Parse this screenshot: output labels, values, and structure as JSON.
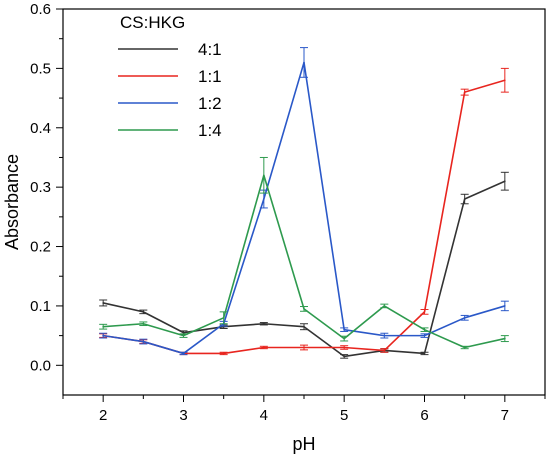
{
  "chart_data": {
    "type": "line",
    "xlabel": "pH",
    "ylabel": "Absorbance",
    "xlim": [
      1.5,
      7.5
    ],
    "ylim": [
      -0.05,
      0.6
    ],
    "xticks": [
      2,
      3,
      4,
      5,
      6,
      7
    ],
    "yticks": [
      0.0,
      0.1,
      0.2,
      0.3,
      0.4,
      0.5,
      0.6
    ],
    "xtick_labels": [
      "2",
      "3",
      "4",
      "5",
      "6",
      "7"
    ],
    "ytick_labels": [
      "0.0",
      "0.1",
      "0.2",
      "0.3",
      "0.4",
      "0.5",
      "0.6"
    ],
    "grid": false,
    "legend_position": "top-left",
    "legend_title": "CS:HKG",
    "x": [
      2,
      2.5,
      3,
      3.5,
      4,
      4.5,
      5,
      5.5,
      6,
      6.5,
      7
    ],
    "series": [
      {
        "name": "4:1",
        "color": "#333333",
        "values": [
          0.105,
          0.09,
          0.055,
          0.065,
          0.07,
          0.065,
          0.015,
          0.025,
          0.02,
          0.28,
          0.31
        ],
        "errors": [
          0.005,
          0.003,
          0.003,
          0.003,
          0.002,
          0.005,
          0.003,
          0.003,
          0.002,
          0.008,
          0.015
        ]
      },
      {
        "name": "1:1",
        "color": "#e8251f",
        "values": [
          0.05,
          0.04,
          0.02,
          0.02,
          0.03,
          0.03,
          0.03,
          0.025,
          0.09,
          0.46,
          0.48
        ],
        "errors": [
          0.003,
          0.003,
          0.002,
          0.002,
          0.002,
          0.004,
          0.003,
          0.003,
          0.004,
          0.005,
          0.02
        ]
      },
      {
        "name": "1:2",
        "color": "#2a58c8",
        "values": [
          0.05,
          0.04,
          0.02,
          0.07,
          0.28,
          0.51,
          0.06,
          0.05,
          0.05,
          0.08,
          0.1
        ],
        "errors": [
          0.004,
          0.004,
          0.002,
          0.004,
          0.015,
          0.025,
          0.003,
          0.004,
          0.003,
          0.004,
          0.008
        ]
      },
      {
        "name": "1:4",
        "color": "#2e9a4e",
        "values": [
          0.065,
          0.07,
          0.05,
          0.08,
          0.32,
          0.095,
          0.045,
          0.1,
          0.06,
          0.03,
          0.045
        ],
        "errors": [
          0.004,
          0.003,
          0.003,
          0.01,
          0.03,
          0.004,
          0.004,
          0.003,
          0.003,
          0.002,
          0.005
        ]
      }
    ]
  }
}
